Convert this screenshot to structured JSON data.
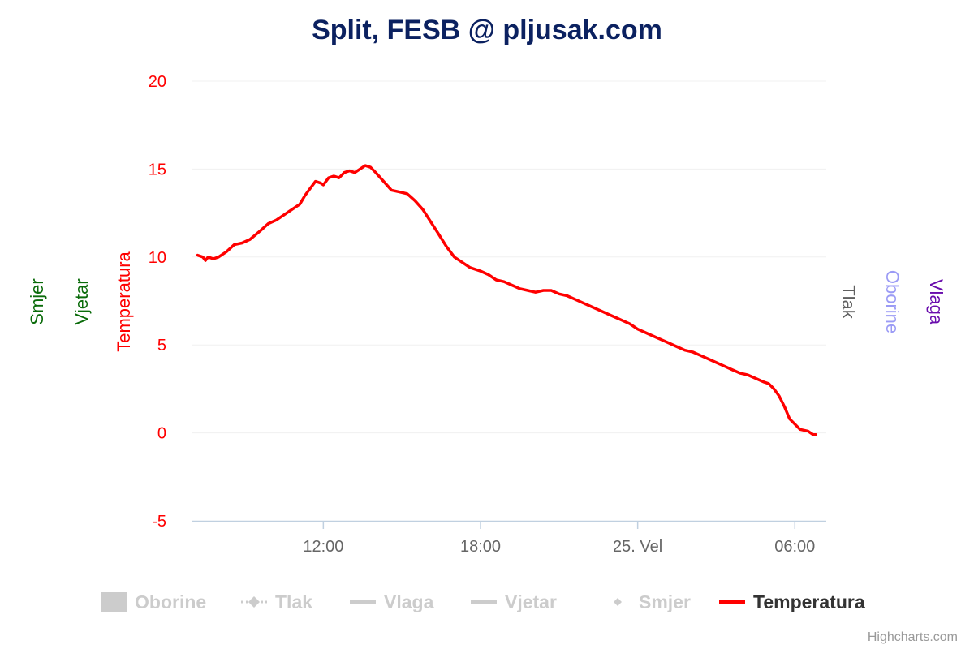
{
  "chart_data": {
    "type": "line",
    "title": "Split, FESB @ pljusak.com",
    "title_color": "#0b2160",
    "y_axis": {
      "title": "Temperatura",
      "color": "#ff0000",
      "range": [
        -5,
        20
      ],
      "ticks": [
        20,
        15,
        10,
        5,
        0,
        -5
      ],
      "grid": true
    },
    "x_axis": {
      "range_hours": [
        7.0,
        31.2
      ],
      "ticks": [
        {
          "value": 12,
          "label": "12:00"
        },
        {
          "value": 18,
          "label": "18:00"
        },
        {
          "value": 24,
          "label": "25. Vel"
        },
        {
          "value": 30,
          "label": "06:00"
        }
      ]
    },
    "side_axes": [
      {
        "label": "Smjer",
        "color": "#0a6b0a",
        "side": "left"
      },
      {
        "label": "Vjetar",
        "color": "#0a6b0a",
        "side": "left"
      },
      {
        "label": "Tlak",
        "color": "#606060",
        "side": "right"
      },
      {
        "label": "Oborine",
        "color": "#9b9bf5",
        "side": "right"
      },
      {
        "label": "Vlaga",
        "color": "#6a0dad",
        "side": "right"
      }
    ],
    "legend": [
      {
        "name": "Oborine",
        "symbol": "rect",
        "active": false
      },
      {
        "name": "Tlak",
        "symbol": "diamond-dash",
        "active": false
      },
      {
        "name": "Vlaga",
        "symbol": "line",
        "active": false
      },
      {
        "name": "Vjetar",
        "symbol": "line",
        "active": false
      },
      {
        "name": "Smjer",
        "symbol": "diamond",
        "active": false
      },
      {
        "name": "Temperatura",
        "symbol": "line",
        "active": true,
        "color": "#ff0000"
      }
    ],
    "series": [
      {
        "name": "Temperatura",
        "color": "#ff0000",
        "x": [
          7.2,
          7.4,
          7.5,
          7.6,
          7.8,
          8.0,
          8.3,
          8.6,
          8.9,
          9.2,
          9.6,
          9.9,
          10.2,
          10.5,
          10.7,
          10.9,
          11.1,
          11.3,
          11.5,
          11.7,
          11.9,
          12.0,
          12.2,
          12.4,
          12.6,
          12.8,
          13.0,
          13.2,
          13.4,
          13.6,
          13.8,
          14.0,
          14.3,
          14.6,
          14.9,
          15.2,
          15.5,
          15.8,
          16.1,
          16.4,
          16.7,
          17.0,
          17.3,
          17.6,
          18.0,
          18.3,
          18.6,
          18.9,
          19.2,
          19.5,
          19.8,
          20.1,
          20.4,
          20.7,
          21.0,
          21.3,
          21.6,
          21.9,
          22.2,
          22.5,
          22.8,
          23.1,
          23.4,
          23.7,
          24.0,
          24.3,
          24.6,
          24.9,
          25.2,
          25.5,
          25.8,
          26.1,
          26.4,
          26.7,
          27.0,
          27.3,
          27.6,
          27.9,
          28.2,
          28.5,
          28.8,
          29.0,
          29.2,
          29.4,
          29.6,
          29.8,
          30.0,
          30.2,
          30.5,
          30.7,
          30.8
        ],
        "y": [
          10.1,
          10.0,
          9.8,
          10.0,
          9.9,
          10.0,
          10.3,
          10.7,
          10.8,
          11.0,
          11.5,
          11.9,
          12.1,
          12.4,
          12.6,
          12.8,
          13.0,
          13.5,
          13.9,
          14.3,
          14.2,
          14.1,
          14.5,
          14.6,
          14.5,
          14.8,
          14.9,
          14.8,
          15.0,
          15.2,
          15.1,
          14.8,
          14.3,
          13.8,
          13.7,
          13.6,
          13.2,
          12.7,
          12.0,
          11.3,
          10.6,
          10.0,
          9.7,
          9.4,
          9.2,
          9.0,
          8.7,
          8.6,
          8.4,
          8.2,
          8.1,
          8.0,
          8.1,
          8.1,
          7.9,
          7.8,
          7.6,
          7.4,
          7.2,
          7.0,
          6.8,
          6.6,
          6.4,
          6.2,
          5.9,
          5.7,
          5.5,
          5.3,
          5.1,
          4.9,
          4.7,
          4.6,
          4.4,
          4.2,
          4.0,
          3.8,
          3.6,
          3.4,
          3.3,
          3.1,
          2.9,
          2.8,
          2.5,
          2.1,
          1.5,
          0.8,
          0.5,
          0.2,
          0.1,
          -0.1,
          -0.1
        ]
      }
    ],
    "credits": "Highcharts.com"
  }
}
